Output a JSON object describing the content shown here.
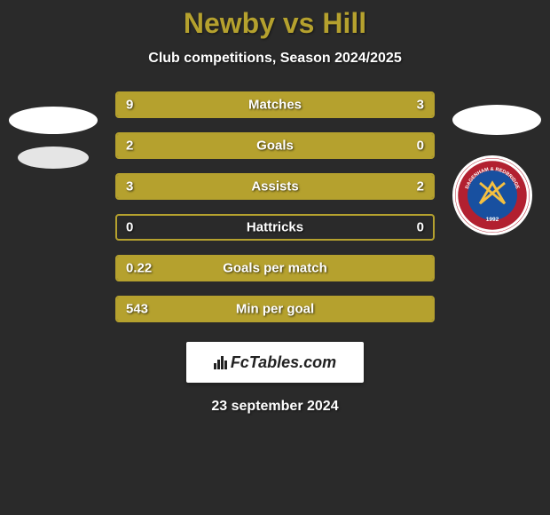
{
  "title": "Newby vs Hill",
  "subtitle": "Club competitions, Season 2024/2025",
  "date": "23 september 2024",
  "fctables_label": "FcTables.com",
  "colors": {
    "background": "#2a2a2a",
    "accent": "#b5a12e",
    "text": "#ffffff",
    "panel": "#ffffff"
  },
  "stats": [
    {
      "label": "Matches",
      "left_value": "9",
      "right_value": "3",
      "left_pct": 75,
      "right_pct": 25
    },
    {
      "label": "Goals",
      "left_value": "2",
      "right_value": "0",
      "left_pct": 100,
      "right_pct": 0
    },
    {
      "label": "Assists",
      "left_value": "3",
      "right_value": "2",
      "left_pct": 60,
      "right_pct": 40
    },
    {
      "label": "Hattricks",
      "left_value": "0",
      "right_value": "0",
      "left_pct": 0,
      "right_pct": 0
    },
    {
      "label": "Goals per match",
      "left_value": "0.22",
      "right_value": "",
      "left_pct": 100,
      "right_pct": 0
    },
    {
      "label": "Min per goal",
      "left_value": "543",
      "right_value": "",
      "left_pct": 100,
      "right_pct": 0
    }
  ],
  "crest": {
    "text_top": "DAGENHAM & REDBRIDGE",
    "text_bottom": "FC",
    "year": "1992"
  }
}
